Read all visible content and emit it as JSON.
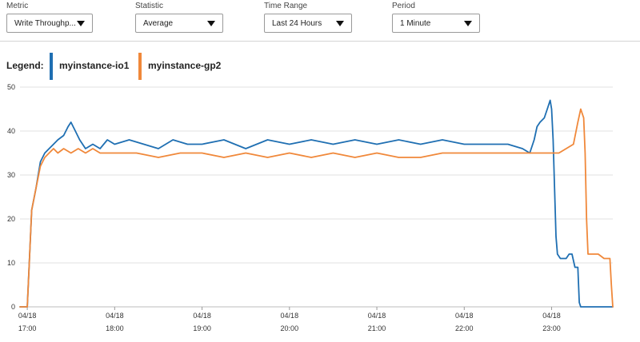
{
  "controls": {
    "metric": {
      "label": "Metric",
      "value": "Write Throughp..."
    },
    "statistic": {
      "label": "Statistic",
      "value": "Average"
    },
    "time_range": {
      "label": "Time Range",
      "value": "Last 24 Hours"
    },
    "period": {
      "label": "Period",
      "value": "1 Minute"
    }
  },
  "legend": {
    "title": "Legend:",
    "items": [
      {
        "label": "myinstance-io1",
        "color": "#1f6fb2"
      },
      {
        "label": "myinstance-gp2",
        "color": "#f0883a"
      }
    ]
  },
  "chart_data": {
    "type": "line",
    "title": "",
    "xlabel": "",
    "ylabel": "",
    "ylim": [
      0,
      50
    ],
    "y_ticks": [
      0,
      10,
      20,
      30,
      40,
      50
    ],
    "xlim": [
      "16:55",
      "23:42"
    ],
    "x_ticks": [
      {
        "time": "17:00",
        "date": "04/18"
      },
      {
        "time": "18:00",
        "date": "04/18"
      },
      {
        "time": "19:00",
        "date": "04/18"
      },
      {
        "time": "20:00",
        "date": "04/18"
      },
      {
        "time": "21:00",
        "date": "04/18"
      },
      {
        "time": "22:00",
        "date": "04/18"
      },
      {
        "time": "23:00",
        "date": "04/18"
      }
    ],
    "grid": true,
    "legend_position": "top-left",
    "series": [
      {
        "name": "myinstance-io1",
        "color": "#1f6fb2",
        "points": [
          [
            "16:55",
            0
          ],
          [
            "17:00",
            0
          ],
          [
            "17:03",
            22
          ],
          [
            "17:06",
            27
          ],
          [
            "17:09",
            33
          ],
          [
            "17:12",
            35
          ],
          [
            "17:15",
            36
          ],
          [
            "17:18",
            37
          ],
          [
            "17:21",
            38
          ],
          [
            "17:25",
            39
          ],
          [
            "17:28",
            41
          ],
          [
            "17:30",
            42
          ],
          [
            "17:33",
            40
          ],
          [
            "17:36",
            38
          ],
          [
            "17:40",
            36
          ],
          [
            "17:45",
            37
          ],
          [
            "17:50",
            36
          ],
          [
            "17:55",
            38
          ],
          [
            "18:00",
            37
          ],
          [
            "18:10",
            38
          ],
          [
            "18:20",
            37
          ],
          [
            "18:30",
            36
          ],
          [
            "18:40",
            38
          ],
          [
            "18:50",
            37
          ],
          [
            "19:00",
            37
          ],
          [
            "19:15",
            38
          ],
          [
            "19:30",
            36
          ],
          [
            "19:45",
            38
          ],
          [
            "20:00",
            37
          ],
          [
            "20:15",
            38
          ],
          [
            "20:30",
            37
          ],
          [
            "20:45",
            38
          ],
          [
            "21:00",
            37
          ],
          [
            "21:15",
            38
          ],
          [
            "21:30",
            37
          ],
          [
            "21:45",
            38
          ],
          [
            "22:00",
            37
          ],
          [
            "22:15",
            37
          ],
          [
            "22:30",
            37
          ],
          [
            "22:40",
            36
          ],
          [
            "22:45",
            35
          ],
          [
            "22:48",
            38
          ],
          [
            "22:50",
            41
          ],
          [
            "22:52",
            42
          ],
          [
            "22:55",
            43
          ],
          [
            "22:57",
            45
          ],
          [
            "22:59",
            47
          ],
          [
            "23:00",
            45
          ],
          [
            "23:01",
            38
          ],
          [
            "23:02",
            27
          ],
          [
            "23:03",
            16
          ],
          [
            "23:04",
            12
          ],
          [
            "23:06",
            11
          ],
          [
            "23:08",
            11
          ],
          [
            "23:10",
            11
          ],
          [
            "23:12",
            12
          ],
          [
            "23:14",
            12
          ],
          [
            "23:16",
            9
          ],
          [
            "23:18",
            9
          ],
          [
            "23:19",
            1
          ],
          [
            "23:20",
            0
          ],
          [
            "23:42",
            0
          ]
        ]
      },
      {
        "name": "myinstance-gp2",
        "color": "#f0883a",
        "points": [
          [
            "16:55",
            0
          ],
          [
            "17:00",
            0
          ],
          [
            "17:03",
            22
          ],
          [
            "17:06",
            27
          ],
          [
            "17:09",
            32
          ],
          [
            "17:12",
            34
          ],
          [
            "17:15",
            35
          ],
          [
            "17:18",
            36
          ],
          [
            "17:21",
            35
          ],
          [
            "17:25",
            36
          ],
          [
            "17:30",
            35
          ],
          [
            "17:35",
            36
          ],
          [
            "17:40",
            35
          ],
          [
            "17:45",
            36
          ],
          [
            "17:50",
            35
          ],
          [
            "18:00",
            35
          ],
          [
            "18:15",
            35
          ],
          [
            "18:30",
            34
          ],
          [
            "18:45",
            35
          ],
          [
            "19:00",
            35
          ],
          [
            "19:15",
            34
          ],
          [
            "19:30",
            35
          ],
          [
            "19:45",
            34
          ],
          [
            "20:00",
            35
          ],
          [
            "20:15",
            34
          ],
          [
            "20:30",
            35
          ],
          [
            "20:45",
            34
          ],
          [
            "21:00",
            35
          ],
          [
            "21:15",
            34
          ],
          [
            "21:30",
            34
          ],
          [
            "21:45",
            35
          ],
          [
            "22:00",
            35
          ],
          [
            "22:15",
            35
          ],
          [
            "22:30",
            35
          ],
          [
            "22:45",
            35
          ],
          [
            "23:00",
            35
          ],
          [
            "23:05",
            35
          ],
          [
            "23:10",
            36
          ],
          [
            "23:15",
            37
          ],
          [
            "23:18",
            42
          ],
          [
            "23:20",
            45
          ],
          [
            "23:22",
            43
          ],
          [
            "23:23",
            35
          ],
          [
            "23:24",
            20
          ],
          [
            "23:25",
            12
          ],
          [
            "23:28",
            12
          ],
          [
            "23:32",
            12
          ],
          [
            "23:36",
            11
          ],
          [
            "23:38",
            11
          ],
          [
            "23:40",
            11
          ],
          [
            "23:41",
            5
          ],
          [
            "23:42",
            0
          ]
        ]
      }
    ]
  }
}
